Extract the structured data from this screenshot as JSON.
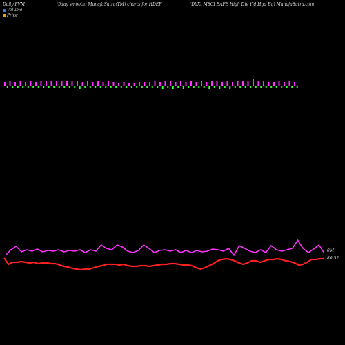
{
  "header": {
    "left": "Daily PVM",
    "center": "(5day smooth) MunafaSutra(TM) charts for HDEF",
    "right": "(DbXt MSCI EAFE High Div   Yld Hgd Eq) MunafaSutra.com"
  },
  "legend": {
    "volume_label": "Volume",
    "price_label": "Price",
    "volume_color": "#3a7bd5",
    "price_color": "#f0a000"
  },
  "chart_data": {
    "type": "line",
    "bars": {
      "colors": {
        "up": "#ff33ff",
        "down": "#33ff33"
      },
      "values": [
        5,
        -3,
        6,
        -2,
        5,
        -2,
        6,
        -3,
        5,
        -2,
        6,
        -3,
        5,
        -3,
        6,
        -2,
        7,
        -3,
        6,
        -2,
        7,
        -2,
        7,
        -3,
        6,
        -3,
        7,
        -2,
        6,
        -4,
        5,
        -2,
        6,
        -3,
        5,
        -3,
        6,
        -2,
        5,
        -3,
        6,
        -2,
        5,
        -2,
        4,
        -2,
        5,
        -3,
        4,
        -2,
        4,
        -2,
        5,
        -2,
        5,
        -3,
        5,
        -2,
        6,
        -3,
        5,
        -4,
        6,
        -3,
        6,
        -4,
        5,
        -2,
        6,
        -4,
        5,
        -3,
        6,
        -3,
        5,
        -3,
        6,
        -3,
        5,
        -4,
        6,
        -3,
        6,
        -4,
        5,
        -3,
        6,
        -4,
        5,
        -3,
        7,
        -2,
        7,
        -2,
        6,
        -3,
        9,
        -2,
        7,
        -3,
        6,
        -2,
        5,
        -2,
        5,
        -2,
        6,
        -2,
        5,
        -2,
        6,
        -2,
        5,
        -2
      ]
    },
    "series": [
      {
        "color": "#ff33ff",
        "values": [
          370,
          362,
          357,
          365,
          362,
          364,
          361,
          365,
          363,
          364,
          362,
          365,
          363,
          364,
          362,
          366,
          362,
          364,
          355,
          360,
          362,
          355,
          358,
          364,
          366,
          363,
          355,
          360,
          366,
          363,
          362,
          364,
          362,
          366,
          363,
          366,
          363,
          365,
          364,
          361,
          362,
          364,
          360,
          370,
          356,
          360,
          364,
          366,
          362,
          366,
          356,
          362,
          364,
          362,
          360,
          348,
          360,
          366,
          361,
          355,
          367
        ]
      },
      {
        "color": "#ff2020",
        "values": [
          374,
          383,
          380,
          380,
          379,
          380,
          381,
          380,
          382,
          381,
          381,
          382,
          382,
          384,
          386,
          387,
          389,
          390,
          391,
          390,
          390,
          388,
          386,
          385,
          383,
          383,
          383,
          384,
          383,
          385,
          386,
          386,
          385,
          385,
          386,
          385,
          384,
          383,
          383,
          382,
          382,
          383,
          384,
          384,
          385,
          388,
          390,
          388,
          385,
          382,
          378,
          376,
          375,
          376,
          378,
          381,
          383,
          381,
          378,
          378,
          380,
          378,
          376,
          376,
          375,
          376,
          378,
          379,
          381,
          384,
          383,
          380,
          376,
          376,
          375,
          375
        ]
      }
    ],
    "annotations": [
      {
        "text": "0M"
      },
      {
        "text": "80.52"
      }
    ]
  }
}
